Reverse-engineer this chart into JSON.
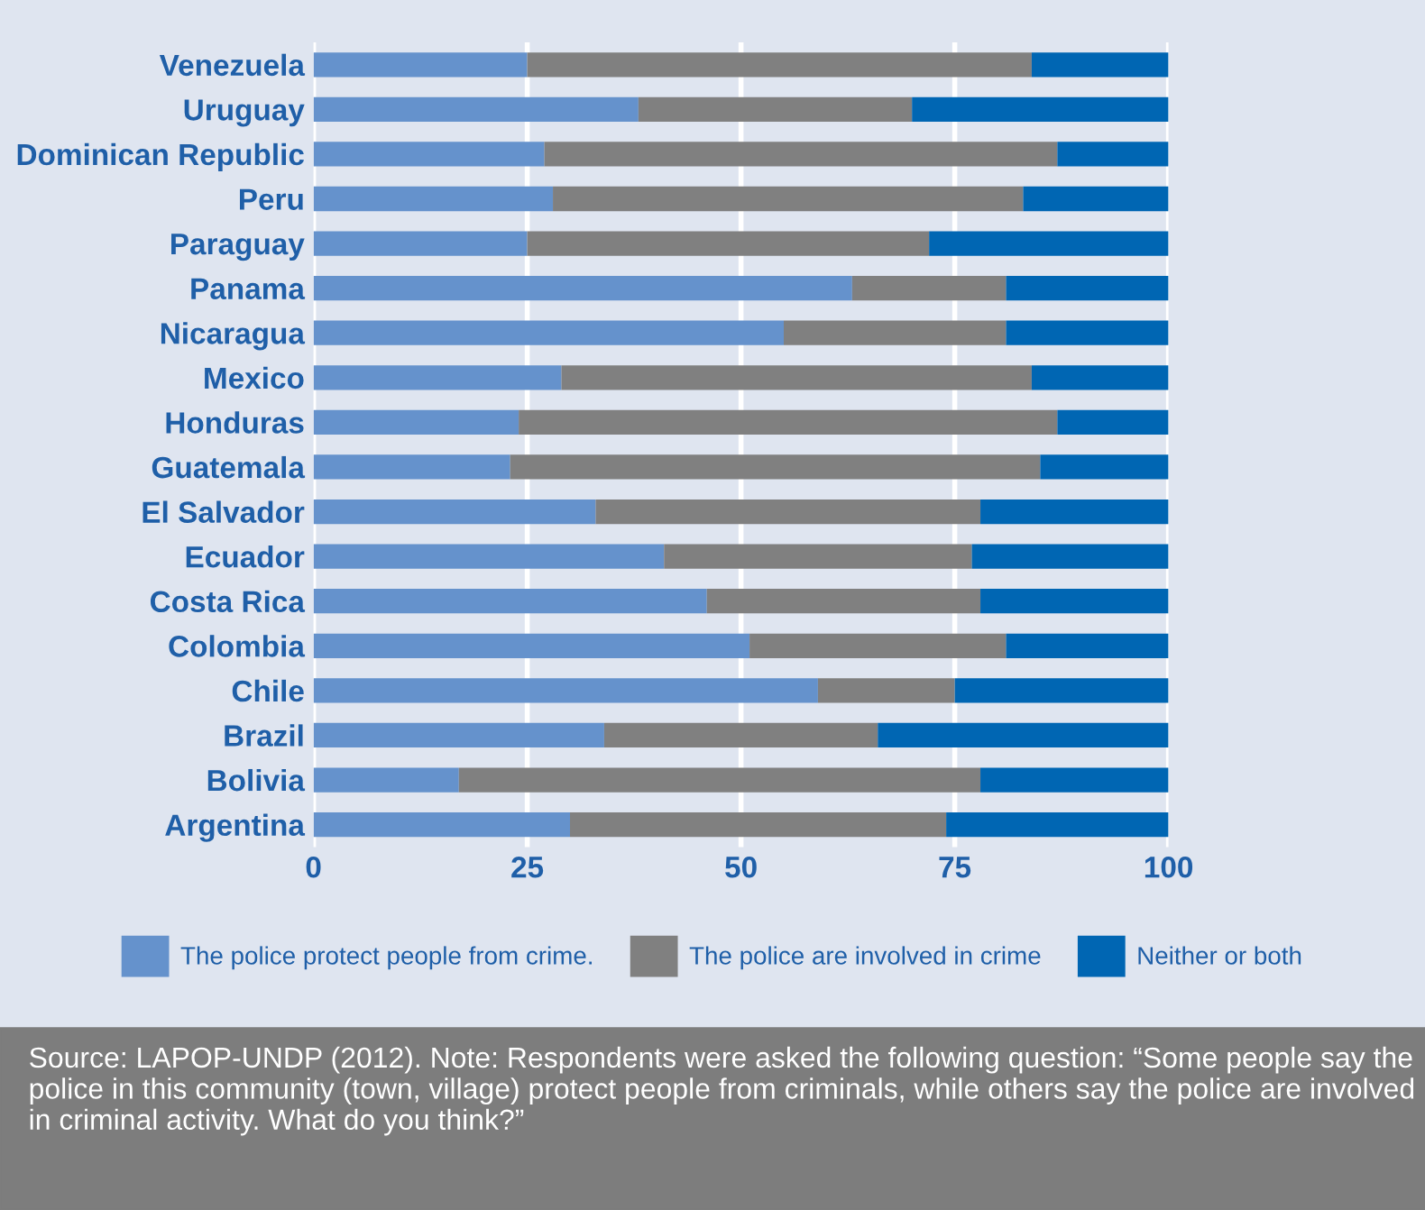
{
  "chart_data": {
    "type": "bar",
    "orientation": "horizontal",
    "stacked": true,
    "categories": [
      "Venezuela",
      "Uruguay",
      "Dominican Republic",
      "Peru",
      "Paraguay",
      "Panama",
      "Nicaragua",
      "Mexico",
      "Honduras",
      "Guatemala",
      "El Salvador",
      "Ecuador",
      "Costa Rica",
      "Colombia",
      "Chile",
      "Brazil",
      "Bolivia",
      "Argentina"
    ],
    "series": [
      {
        "name": "The police protect people from crime.",
        "color": "#6592cc",
        "values": [
          25,
          38,
          27,
          28,
          25,
          63,
          55,
          29,
          24,
          23,
          33,
          41,
          46,
          51,
          59,
          34,
          17,
          30
        ]
      },
      {
        "name": "The police are involved in crime",
        "color": "#808080",
        "values": [
          59,
          32,
          60,
          55,
          47,
          18,
          26,
          55,
          63,
          62,
          45,
          36,
          32,
          30,
          16,
          32,
          61,
          44
        ]
      },
      {
        "name": "Neither or both",
        "color": "#0066b3",
        "values": [
          16,
          30,
          13,
          17,
          28,
          19,
          19,
          16,
          13,
          15,
          22,
          23,
          22,
          19,
          25,
          34,
          22,
          26
        ]
      }
    ],
    "xlim": [
      0,
      100
    ],
    "xticks": [
      0,
      25,
      50,
      75,
      100
    ],
    "grid": "x",
    "legend": "bottom",
    "annotations": [
      "Source: LAPOP-UNDP (2012). Note: Respondents were asked the following question: “Some people say the police in this community (town, village) protect people from criminals, while others say the police are involved in criminal activity. What do you think?”"
    ]
  }
}
